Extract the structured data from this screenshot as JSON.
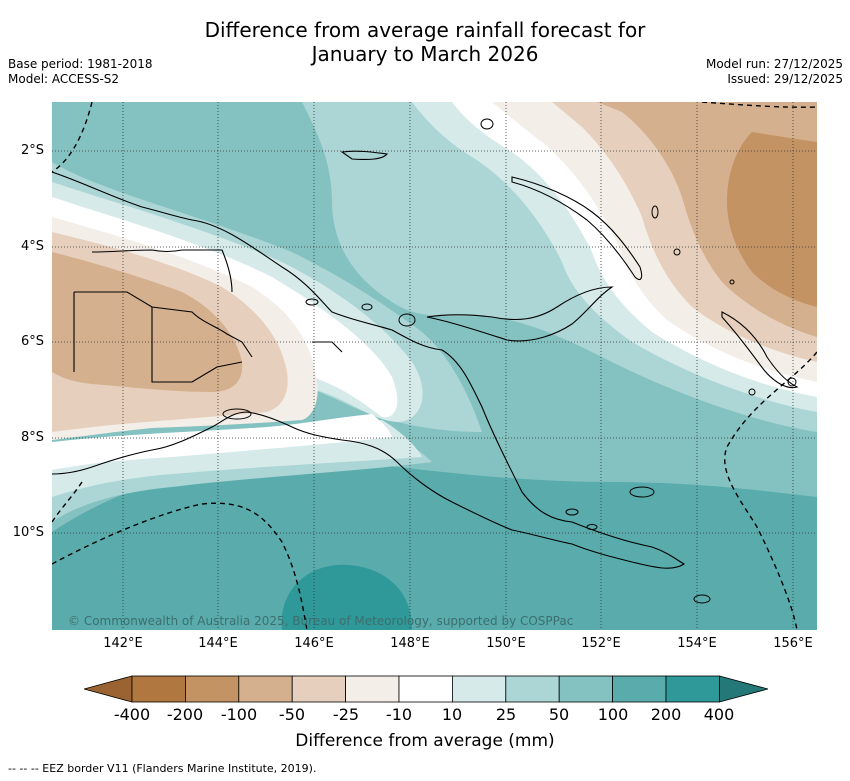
{
  "header": {
    "title_line1": "Difference from average rainfall forecast for",
    "title_line2": "January to March 2026",
    "base_period": "Base period: 1981-2018",
    "model": "Model: ACCESS-S2",
    "model_run": "Model run: 27/12/2025",
    "issued": "Issued: 29/12/2025"
  },
  "map": {
    "copyright": "© Commonwealth of Australia 2025, Bureau of Meteorology, supported by COSPPac",
    "lat_labels": [
      "2°S",
      "4°S",
      "6°S",
      "8°S",
      "10°S"
    ],
    "lon_labels": [
      "142°E",
      "144°E",
      "146°E",
      "148°E",
      "150°E",
      "152°E",
      "154°E",
      "156°E"
    ]
  },
  "legend": {
    "labels": [
      "-400",
      "-200",
      "-100",
      "-50",
      "-25",
      "-10",
      "10",
      "25",
      "50",
      "100",
      "200",
      "400"
    ],
    "colors": [
      "#9c6332",
      "#b07840",
      "#c49364",
      "#d5b08e",
      "#e6d0bd",
      "#f3eee8",
      "#ffffff",
      "#d6eaea",
      "#acd5d5",
      "#84c1c1",
      "#5aacac",
      "#2f9898",
      "#247878"
    ],
    "title": "Difference from average (mm)"
  },
  "footnote": "--  --  -- EEZ border V11 (Flanders Marine Institute, 2019)."
}
